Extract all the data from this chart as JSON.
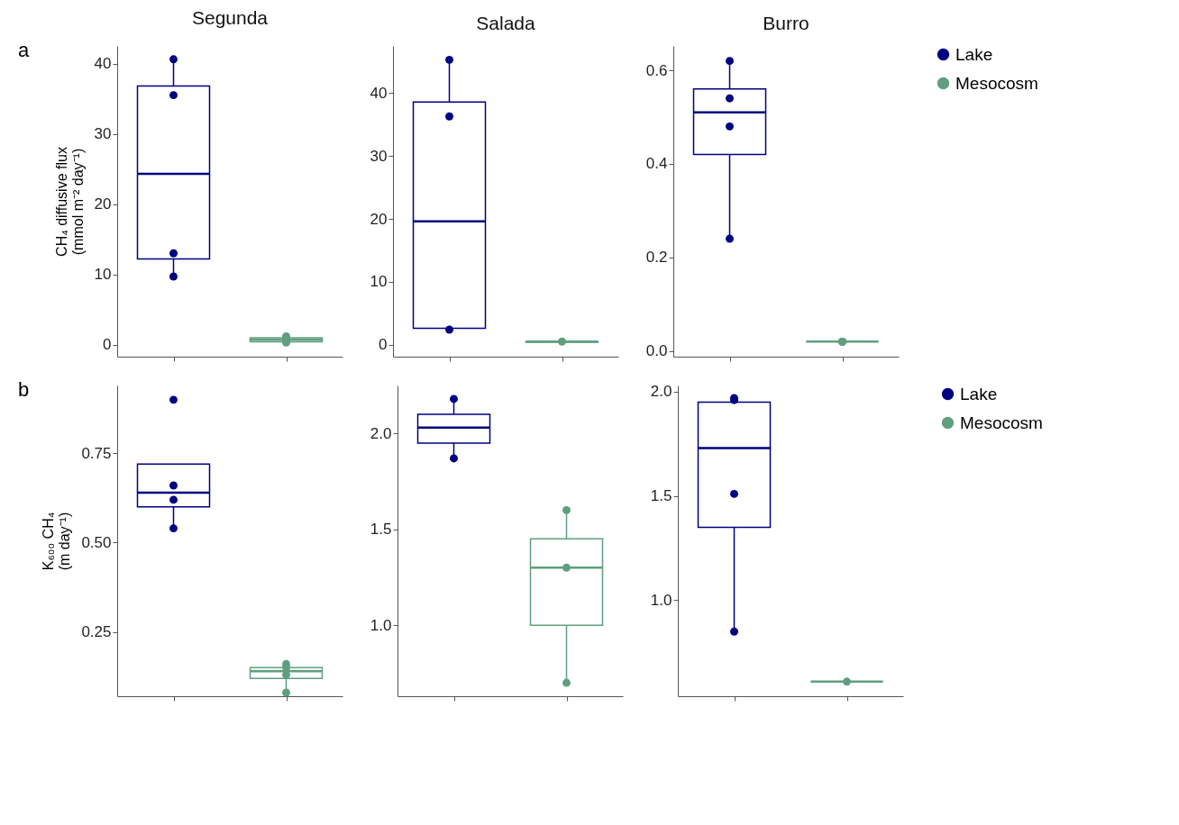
{
  "chart_data": [
    {
      "type": "box",
      "title": "Segunda",
      "ylabel": "CH₄ diffusive flux\n(mmol m⁻² day⁻¹)",
      "annotations": [
        "a"
      ],
      "categories": [
        null,
        null
      ],
      "tick_labels": "y",
      "legend": false,
      "ylim": [
        -1.7,
        42.5
      ],
      "yticks": [
        0,
        10,
        20,
        30,
        40
      ],
      "series": [
        {
          "color": "#000080",
          "boxes": [
            {
              "low": 9.7,
              "q1": 12.2,
              "median": 24.3,
              "q3": 36.8,
              "high": 40.6,
              "outliers": [
                40.6,
                35.5,
                13.0,
                9.7
              ]
            },
            null
          ]
        },
        {
          "color": "#5f9f7f",
          "boxes": [
            null,
            {
              "low": 0.3,
              "q1": 0.4,
              "median": 0.7,
              "q3": 1.0,
              "high": 1.2,
              "outliers": [
                1.2,
                0.9,
                0.6,
                0.3
              ]
            }
          ]
        }
      ]
    },
    {
      "type": "box",
      "title": "Salada",
      "categories": [
        null,
        null
      ],
      "tick_labels": "y",
      "legend": false,
      "ylim": [
        -1.9,
        47.5
      ],
      "yticks": [
        0,
        10,
        20,
        30,
        40
      ],
      "series": [
        {
          "color": "#000080",
          "boxes": [
            {
              "low": 2.3,
              "q1": 2.6,
              "median": 19.6,
              "q3": 38.6,
              "high": 45.3,
              "outliers": [
                45.3,
                36.3,
                2.4
              ]
            },
            null
          ]
        },
        {
          "color": "#5f9f7f",
          "boxes": [
            null,
            {
              "low": 0.4,
              "q1": 0.4,
              "median": 0.5,
              "q3": 0.5,
              "high": 0.6,
              "outliers": [
                0.5
              ]
            }
          ]
        }
      ]
    },
    {
      "type": "box",
      "title": "Burro",
      "categories": [
        null,
        null
      ],
      "tick_labels": "y",
      "legend": "right",
      "ylim": [
        -0.012,
        0.652
      ],
      "yticks": [
        {
          "value": 0,
          "label": "0.0"
        },
        0.2,
        0.4,
        0.6
      ],
      "series": [
        {
          "name": "Lake",
          "color": "#000080",
          "boxes": [
            {
              "low": 0.24,
              "q1": 0.42,
              "median": 0.51,
              "q3": 0.56,
              "high": 0.62,
              "outliers": [
                0.62,
                0.54,
                0.48,
                0.24
              ]
            },
            null
          ]
        },
        {
          "name": "Mesocosm",
          "color": "#5f9f7f",
          "boxes": [
            null,
            {
              "low": 0.02,
              "q1": 0.02,
              "median": 0.02,
              "q3": 0.02,
              "high": 0.02,
              "outliers": [
                0.02,
                0.02,
                0.02,
                0.02
              ]
            }
          ]
        }
      ]
    },
    {
      "type": "box",
      "ylabel": "K₆₀₀ CH₄\n(m day⁻¹)",
      "annotations": [
        "b"
      ],
      "categories": [
        null,
        null
      ],
      "tick_labels": "y",
      "legend": false,
      "ylim": [
        0.07,
        0.94
      ],
      "yticks": [
        0.25,
        {
          "value": 0.5,
          "label": "0.50"
        },
        0.75
      ],
      "series": [
        {
          "color": "#000080",
          "boxes": [
            {
              "low": 0.54,
              "q1": 0.6,
              "median": 0.64,
              "q3": 0.72,
              "high": 0.72,
              "outliers": [
                0.9,
                0.66,
                0.62,
                0.54
              ]
            },
            null
          ]
        },
        {
          "color": "#5f9f7f",
          "boxes": [
            null,
            {
              "low": 0.09,
              "q1": 0.12,
              "median": 0.14,
              "q3": 0.15,
              "high": 0.16,
              "outliers": [
                0.16,
                0.15,
                0.13,
                0.08
              ]
            }
          ]
        }
      ]
    },
    {
      "type": "box",
      "categories": [
        null,
        null
      ],
      "tick_labels": "y",
      "legend": false,
      "ylim": [
        0.63,
        2.25
      ],
      "yticks": [
        {
          "value": 1,
          "label": "1.0"
        },
        1.5,
        {
          "value": 2,
          "label": "2.0"
        }
      ],
      "series": [
        {
          "color": "#000080",
          "boxes": [
            {
              "low": 1.87,
              "q1": 1.95,
              "median": 2.03,
              "q3": 2.1,
              "high": 2.18,
              "outliers": [
                2.18,
                1.87
              ]
            },
            null
          ]
        },
        {
          "color": "#5f9f7f",
          "boxes": [
            null,
            {
              "low": 0.7,
              "q1": 1.0,
              "median": 1.3,
              "q3": 1.45,
              "high": 1.6,
              "outliers": [
                1.6,
                1.3,
                0.7
              ]
            }
          ]
        }
      ]
    },
    {
      "type": "box",
      "categories": [
        null,
        null
      ],
      "tick_labels": "y",
      "legend": "right",
      "ylim": [
        0.54,
        2.03
      ],
      "yticks": [
        {
          "value": 1,
          "label": "1.0"
        },
        1.5,
        {
          "value": 2,
          "label": "2.0"
        }
      ],
      "series": [
        {
          "name": "Lake",
          "color": "#000080",
          "boxes": [
            {
              "low": 0.86,
              "q1": 1.35,
              "median": 1.73,
              "q3": 1.95,
              "high": 1.96,
              "outliers": [
                1.96,
                1.97,
                1.51,
                0.85
              ]
            },
            null
          ]
        },
        {
          "name": "Mesocosm",
          "color": "#5f9f7f",
          "boxes": [
            null,
            {
              "low": 0.61,
              "q1": 0.61,
              "median": 0.61,
              "q3": 0.61,
              "high": 0.61,
              "outliers": [
                0.61
              ]
            }
          ]
        }
      ]
    }
  ]
}
